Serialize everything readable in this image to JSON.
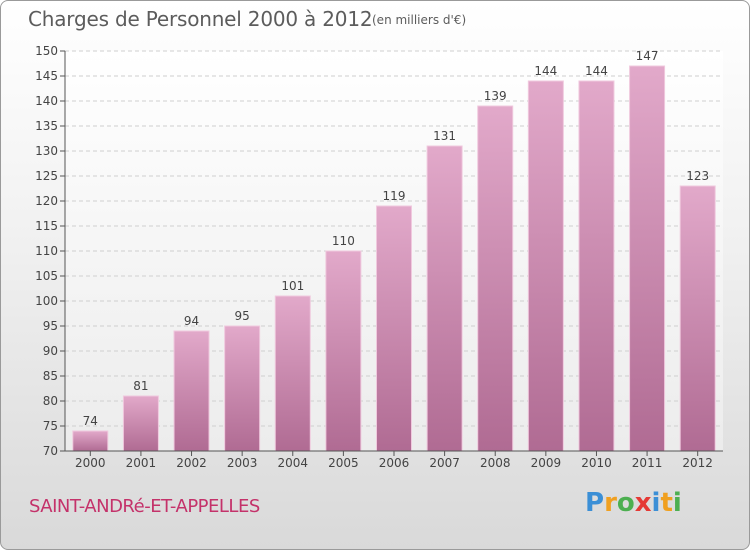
{
  "title": "Charges de Personnel 2000 à 2012",
  "subtitle": "(en milliers d'€)",
  "town": "SAINT-ANDRé-ET-APPELLES",
  "logo": {
    "letters": [
      "P",
      "r",
      "o",
      "x",
      "i",
      "t",
      "i"
    ],
    "colors": [
      "#3b8fd6",
      "#f0a020",
      "#4caf50",
      "#e53935",
      "#3b8fd6",
      "#f0a020",
      "#4caf50"
    ]
  },
  "colors": {
    "bar_top": "#e2a9ca",
    "bar_bottom": "#b06b93",
    "bar_edge": "#f0c9de",
    "axis": "#555555",
    "grid": "#cfcfcf"
  },
  "chart_data": {
    "type": "bar",
    "categories": [
      "2000",
      "2001",
      "2002",
      "2003",
      "2004",
      "2005",
      "2006",
      "2007",
      "2008",
      "2009",
      "2010",
      "2011",
      "2012"
    ],
    "values": [
      74,
      81,
      94,
      95,
      101,
      110,
      119,
      131,
      139,
      144,
      144,
      147,
      123
    ],
    "ylim": [
      70,
      150
    ],
    "yticks": [
      70,
      75,
      80,
      85,
      90,
      95,
      100,
      105,
      110,
      115,
      120,
      125,
      130,
      135,
      140,
      145,
      150
    ],
    "grid": true,
    "data_labels": true
  }
}
